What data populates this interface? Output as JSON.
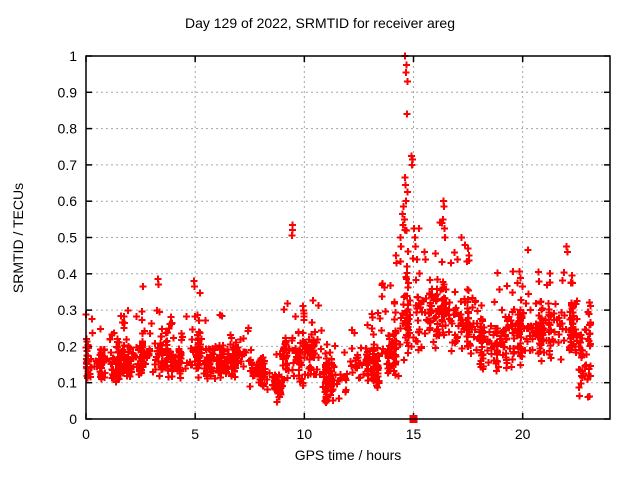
{
  "window": {
    "background": "#ffffff",
    "foreground": "#000000"
  },
  "chart_data": {
    "type": "scatter",
    "title": "Day 129 of 2022, SRMTID for receiver areg",
    "xlabel": "GPS time / hours",
    "ylabel": "SRMTID / TECUs",
    "xlim": [
      0,
      24
    ],
    "ylim": [
      0,
      1
    ],
    "xticks": [
      {
        "v": 0,
        "label": "0"
      },
      {
        "v": 5,
        "label": "5"
      },
      {
        "v": 10,
        "label": "10"
      },
      {
        "v": 15,
        "label": "15"
      },
      {
        "v": 20,
        "label": "20"
      }
    ],
    "yticks": [
      {
        "v": 0,
        "label": "0"
      },
      {
        "v": 0.1,
        "label": "0.1"
      },
      {
        "v": 0.2,
        "label": "0.2"
      },
      {
        "v": 0.3,
        "label": "0.3"
      },
      {
        "v": 0.4,
        "label": "0.4"
      },
      {
        "v": 0.5,
        "label": "0.5"
      },
      {
        "v": 0.6,
        "label": "0.6"
      },
      {
        "v": 0.7,
        "label": "0.7"
      },
      {
        "v": 0.8,
        "label": "0.8"
      },
      {
        "v": 0.9,
        "label": "0.9"
      },
      {
        "v": 1,
        "label": "1"
      }
    ],
    "grid": true,
    "grid_color": "#a6a6a6",
    "legend": "none",
    "marker": {
      "shape": "plus",
      "size": 7,
      "color": "#ff0000"
    },
    "series": [
      {
        "name": "SRMTID",
        "seed": 20220129,
        "bands": [
          {
            "t0": 0.0,
            "t1": 0.5,
            "lo": 0.1,
            "hi": 0.22,
            "top": 0.3,
            "pt": 0.12,
            "n": 40
          },
          {
            "t0": 0.5,
            "t1": 1.5,
            "lo": 0.09,
            "hi": 0.21,
            "top": 0.28,
            "pt": 0.1,
            "n": 75
          },
          {
            "t0": 1.5,
            "t1": 2.5,
            "lo": 0.1,
            "hi": 0.22,
            "top": 0.3,
            "pt": 0.1,
            "n": 75
          },
          {
            "t0": 2.5,
            "t1": 3.6,
            "lo": 0.11,
            "hi": 0.24,
            "top": 0.38,
            "pt": 0.1,
            "n": 80
          },
          {
            "t0": 3.6,
            "t1": 4.7,
            "lo": 0.1,
            "hi": 0.23,
            "top": 0.33,
            "pt": 0.09,
            "n": 80
          },
          {
            "t0": 4.7,
            "t1": 5.3,
            "lo": 0.11,
            "hi": 0.26,
            "top": 0.38,
            "pt": 0.12,
            "n": 45
          },
          {
            "t0": 5.3,
            "t1": 6.5,
            "lo": 0.1,
            "hi": 0.22,
            "top": 0.3,
            "pt": 0.08,
            "n": 85
          },
          {
            "t0": 6.5,
            "t1": 7.5,
            "lo": 0.1,
            "hi": 0.23,
            "top": 0.32,
            "pt": 0.08,
            "n": 70
          },
          {
            "t0": 7.5,
            "t1": 8.3,
            "lo": 0.08,
            "hi": 0.18,
            "top": 0.24,
            "pt": 0.06,
            "n": 55
          },
          {
            "t0": 8.3,
            "t1": 9.0,
            "lo": 0.04,
            "hi": 0.13,
            "top": 0.18,
            "pt": 0.06,
            "n": 50
          },
          {
            "t0": 9.0,
            "t1": 9.7,
            "lo": 0.08,
            "hi": 0.25,
            "top": 0.35,
            "pt": 0.1,
            "n": 50
          },
          {
            "t0": 9.7,
            "t1": 10.8,
            "lo": 0.08,
            "hi": 0.26,
            "top": 0.35,
            "pt": 0.1,
            "n": 75
          },
          {
            "t0": 10.8,
            "t1": 12.2,
            "lo": 0.04,
            "hi": 0.18,
            "top": 0.26,
            "pt": 0.07,
            "n": 90
          },
          {
            "t0": 12.2,
            "t1": 13.5,
            "lo": 0.08,
            "hi": 0.22,
            "top": 0.3,
            "pt": 0.08,
            "n": 85
          },
          {
            "t0": 13.5,
            "t1": 14.4,
            "lo": 0.1,
            "hi": 0.26,
            "top": 0.4,
            "pt": 0.1,
            "n": 65
          },
          {
            "t0": 14.4,
            "t1": 15.4,
            "lo": 0.15,
            "hi": 0.38,
            "top": 0.55,
            "pt": 0.15,
            "n": 70
          },
          {
            "t0": 15.4,
            "t1": 16.2,
            "lo": 0.18,
            "hi": 0.38,
            "top": 0.48,
            "pt": 0.1,
            "n": 55
          },
          {
            "t0": 16.2,
            "t1": 16.7,
            "lo": 0.22,
            "hi": 0.42,
            "top": 0.55,
            "pt": 0.12,
            "n": 40
          },
          {
            "t0": 16.7,
            "t1": 18.0,
            "lo": 0.15,
            "hi": 0.35,
            "top": 0.48,
            "pt": 0.08,
            "n": 85
          },
          {
            "t0": 18.0,
            "t1": 19.5,
            "lo": 0.12,
            "hi": 0.3,
            "top": 0.42,
            "pt": 0.08,
            "n": 100
          },
          {
            "t0": 19.5,
            "t1": 20.5,
            "lo": 0.14,
            "hi": 0.33,
            "top": 0.44,
            "pt": 0.08,
            "n": 70
          },
          {
            "t0": 20.5,
            "t1": 21.8,
            "lo": 0.15,
            "hi": 0.34,
            "top": 0.42,
            "pt": 0.08,
            "n": 95
          },
          {
            "t0": 21.8,
            "t1": 22.5,
            "lo": 0.16,
            "hi": 0.35,
            "top": 0.44,
            "pt": 0.08,
            "n": 60
          },
          {
            "t0": 22.5,
            "t1": 23.1,
            "lo": 0.05,
            "hi": 0.28,
            "top": 0.33,
            "pt": 0.06,
            "n": 45
          }
        ],
        "outliers": [
          [
            14.62,
            1.0
          ],
          [
            14.68,
            0.975
          ],
          [
            14.66,
            0.955
          ],
          [
            14.72,
            0.93
          ],
          [
            14.7,
            0.84
          ],
          [
            14.9,
            0.725
          ],
          [
            14.95,
            0.715
          ],
          [
            14.92,
            0.7
          ],
          [
            14.6,
            0.665
          ],
          [
            14.64,
            0.645
          ],
          [
            14.72,
            0.625
          ],
          [
            14.66,
            0.6
          ],
          [
            14.55,
            0.585
          ],
          [
            14.5,
            0.565
          ],
          [
            14.58,
            0.55
          ],
          [
            14.52,
            0.535
          ],
          [
            14.62,
            0.52
          ],
          [
            15.02,
            0.525
          ],
          [
            15.06,
            0.5
          ],
          [
            15.1,
            0.475
          ],
          [
            14.4,
            0.5
          ],
          [
            14.42,
            0.475
          ],
          [
            14.2,
            0.45
          ],
          [
            14.22,
            0.43
          ],
          [
            15.15,
            0.44
          ],
          [
            15.5,
            0.46
          ],
          [
            15.55,
            0.44
          ],
          [
            9.45,
            0.535
          ],
          [
            9.46,
            0.52
          ],
          [
            9.44,
            0.505
          ],
          [
            16.38,
            0.6
          ],
          [
            16.4,
            0.585
          ],
          [
            16.35,
            0.55
          ],
          [
            16.42,
            0.525
          ],
          [
            16.45,
            0.5
          ],
          [
            17.2,
            0.5
          ],
          [
            17.35,
            0.48
          ],
          [
            17.5,
            0.47
          ],
          [
            20.25,
            0.465
          ],
          [
            22.0,
            0.475
          ],
          [
            22.05,
            0.46
          ],
          [
            3.3,
            0.385
          ],
          [
            3.32,
            0.37
          ],
          [
            4.95,
            0.38
          ],
          [
            4.97,
            0.365
          ]
        ],
        "zero_cluster": [
          [
            14.97,
            0.0
          ],
          [
            15.0,
            0.0
          ],
          [
            15.03,
            0.0
          ]
        ]
      }
    ]
  }
}
